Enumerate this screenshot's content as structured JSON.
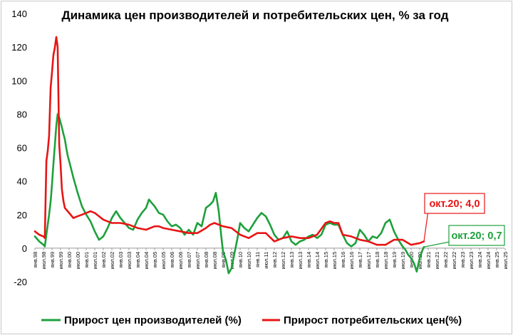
{
  "chart_data": {
    "type": "line",
    "title": "Динамика цен производителей и потребительских цен, % за год",
    "xlabel": "",
    "ylabel": "",
    "ylim": [
      -20,
      140
    ],
    "y_ticks": [
      -20,
      0,
      20,
      40,
      60,
      80,
      100,
      120,
      140
    ],
    "grid": false,
    "legend_position": "bottom",
    "x_tick_labels": [
      "янв.98",
      "июл.98",
      "янв.99",
      "июл.99",
      "янв.00",
      "июл.00",
      "янв.01",
      "июл.01",
      "янв.02",
      "июл.02",
      "янв.03",
      "июл.03",
      "янв.04",
      "июл.04",
      "янв.05",
      "июл.05",
      "янв.06",
      "июл.06",
      "янв.07",
      "июл.07",
      "янв.08",
      "июл.08",
      "янв.09",
      "июл.09",
      "янв.10",
      "июл.10",
      "янв.11",
      "июл.11",
      "янв.12",
      "июл.12",
      "янв.13",
      "июл.13",
      "янв.14",
      "июл.14",
      "янв.15",
      "июл.15",
      "янв.16",
      "июл.16",
      "янв.17",
      "июл.17",
      "янв.18",
      "июл.18",
      "янв.19",
      "июл.19",
      "янв.20",
      "июл.20",
      "янв.21",
      "июл.21",
      "янв.22",
      "июл.22",
      "янв.23",
      "июл.23",
      "янв.24",
      "июл.24",
      "янв.25",
      "июл.25"
    ],
    "series": [
      {
        "name": "Прирост цен производителей (%)",
        "color": "#1ea03c",
        "points": [
          [
            1998.0,
            7
          ],
          [
            1998.25,
            4
          ],
          [
            1998.5,
            2
          ],
          [
            1998.58,
            1
          ],
          [
            1998.67,
            8
          ],
          [
            1998.75,
            14
          ],
          [
            1998.83,
            20
          ],
          [
            1998.92,
            28
          ],
          [
            1999.0,
            38
          ],
          [
            1999.08,
            50
          ],
          [
            1999.17,
            62
          ],
          [
            1999.25,
            73
          ],
          [
            1999.33,
            80
          ],
          [
            1999.42,
            78
          ],
          [
            1999.5,
            75
          ],
          [
            1999.58,
            72
          ],
          [
            1999.67,
            68
          ],
          [
            1999.75,
            65
          ],
          [
            1999.83,
            60
          ],
          [
            1999.92,
            55
          ],
          [
            2000.0,
            52
          ],
          [
            2000.25,
            42
          ],
          [
            2000.5,
            33
          ],
          [
            2000.75,
            25
          ],
          [
            2001.0,
            20
          ],
          [
            2001.25,
            16
          ],
          [
            2001.5,
            10
          ],
          [
            2001.75,
            5
          ],
          [
            2002.0,
            7
          ],
          [
            2002.25,
            12
          ],
          [
            2002.5,
            18
          ],
          [
            2002.75,
            22
          ],
          [
            2003.0,
            18
          ],
          [
            2003.25,
            15
          ],
          [
            2003.5,
            12
          ],
          [
            2003.75,
            11
          ],
          [
            2004.0,
            17
          ],
          [
            2004.25,
            21
          ],
          [
            2004.5,
            24
          ],
          [
            2004.67,
            29
          ],
          [
            2004.83,
            27
          ],
          [
            2005.0,
            25
          ],
          [
            2005.25,
            21
          ],
          [
            2005.5,
            20
          ],
          [
            2005.75,
            16
          ],
          [
            2006.0,
            13
          ],
          [
            2006.25,
            14
          ],
          [
            2006.5,
            12
          ],
          [
            2006.75,
            8
          ],
          [
            2007.0,
            11
          ],
          [
            2007.25,
            8
          ],
          [
            2007.5,
            15
          ],
          [
            2007.75,
            13
          ],
          [
            2008.0,
            24
          ],
          [
            2008.25,
            26
          ],
          [
            2008.42,
            28
          ],
          [
            2008.58,
            33
          ],
          [
            2008.75,
            22
          ],
          [
            2008.92,
            5
          ],
          [
            2009.0,
            -2
          ],
          [
            2009.17,
            -7
          ],
          [
            2009.33,
            -15
          ],
          [
            2009.5,
            -12
          ],
          [
            2009.67,
            -3
          ],
          [
            2009.83,
            5
          ],
          [
            2010.0,
            15
          ],
          [
            2010.25,
            12
          ],
          [
            2010.5,
            10
          ],
          [
            2010.75,
            14
          ],
          [
            2011.0,
            18
          ],
          [
            2011.25,
            21
          ],
          [
            2011.5,
            19
          ],
          [
            2011.75,
            14
          ],
          [
            2012.0,
            8
          ],
          [
            2012.25,
            5
          ],
          [
            2012.5,
            6
          ],
          [
            2012.75,
            10
          ],
          [
            2013.0,
            4
          ],
          [
            2013.25,
            2
          ],
          [
            2013.5,
            4
          ],
          [
            2013.75,
            5
          ],
          [
            2014.0,
            7
          ],
          [
            2014.25,
            8
          ],
          [
            2014.5,
            6
          ],
          [
            2014.75,
            8
          ],
          [
            2015.0,
            14
          ],
          [
            2015.25,
            15
          ],
          [
            2015.5,
            14
          ],
          [
            2015.75,
            14
          ],
          [
            2016.0,
            8
          ],
          [
            2016.25,
            3
          ],
          [
            2016.5,
            1
          ],
          [
            2016.75,
            3
          ],
          [
            2017.0,
            11
          ],
          [
            2017.25,
            8
          ],
          [
            2017.5,
            4
          ],
          [
            2017.75,
            7
          ],
          [
            2018.0,
            6
          ],
          [
            2018.25,
            9
          ],
          [
            2018.5,
            15
          ],
          [
            2018.75,
            17
          ],
          [
            2019.0,
            10
          ],
          [
            2019.25,
            5
          ],
          [
            2019.5,
            1
          ],
          [
            2019.67,
            -1
          ],
          [
            2019.83,
            -4
          ],
          [
            2020.0,
            -6
          ],
          [
            2020.17,
            -9
          ],
          [
            2020.33,
            -14
          ],
          [
            2020.5,
            -6
          ],
          [
            2020.67,
            -1
          ],
          [
            2020.75,
            0.7
          ]
        ]
      },
      {
        "name": "Прирост потребительских цен(%)",
        "color": "#e81414",
        "points": [
          [
            1998.0,
            10
          ],
          [
            1998.25,
            8
          ],
          [
            1998.5,
            7
          ],
          [
            1998.58,
            6
          ],
          [
            1998.67,
            52
          ],
          [
            1998.75,
            58
          ],
          [
            1998.83,
            67
          ],
          [
            1998.92,
            96
          ],
          [
            1999.0,
            105
          ],
          [
            1999.08,
            115
          ],
          [
            1999.17,
            120
          ],
          [
            1999.25,
            126
          ],
          [
            1999.33,
            120
          ],
          [
            1999.42,
            62
          ],
          [
            1999.5,
            50
          ],
          [
            1999.58,
            35
          ],
          [
            1999.67,
            28
          ],
          [
            1999.75,
            24
          ],
          [
            2000.0,
            21
          ],
          [
            2000.25,
            18
          ],
          [
            2000.5,
            19
          ],
          [
            2000.75,
            20
          ],
          [
            2001.0,
            21
          ],
          [
            2001.25,
            22
          ],
          [
            2001.5,
            21
          ],
          [
            2001.75,
            19
          ],
          [
            2002.0,
            17
          ],
          [
            2002.25,
            16
          ],
          [
            2002.5,
            15
          ],
          [
            2003.0,
            15
          ],
          [
            2003.5,
            14
          ],
          [
            2004.0,
            12
          ],
          [
            2004.5,
            11
          ],
          [
            2005.0,
            13
          ],
          [
            2005.25,
            13
          ],
          [
            2005.5,
            12
          ],
          [
            2006.0,
            11
          ],
          [
            2006.5,
            10
          ],
          [
            2007.0,
            9
          ],
          [
            2007.5,
            9
          ],
          [
            2008.0,
            12
          ],
          [
            2008.25,
            14
          ],
          [
            2008.5,
            15
          ],
          [
            2009.0,
            13
          ],
          [
            2009.5,
            12
          ],
          [
            2010.0,
            8
          ],
          [
            2010.5,
            6
          ],
          [
            2011.0,
            9
          ],
          [
            2011.5,
            9
          ],
          [
            2012.0,
            4
          ],
          [
            2012.5,
            6
          ],
          [
            2013.0,
            7
          ],
          [
            2013.5,
            6
          ],
          [
            2014.0,
            6
          ],
          [
            2014.5,
            8
          ],
          [
            2015.0,
            15
          ],
          [
            2015.25,
            16
          ],
          [
            2015.5,
            15
          ],
          [
            2015.75,
            15
          ],
          [
            2016.0,
            8
          ],
          [
            2016.5,
            7
          ],
          [
            2017.0,
            5
          ],
          [
            2017.5,
            4
          ],
          [
            2018.0,
            2
          ],
          [
            2018.5,
            2
          ],
          [
            2019.0,
            5
          ],
          [
            2019.5,
            5
          ],
          [
            2020.0,
            2
          ],
          [
            2020.5,
            3
          ],
          [
            2020.75,
            4.0
          ]
        ]
      }
    ],
    "annotations": [
      {
        "text": "окт.20; 4,0",
        "color": "#e81414",
        "x": 2020.75,
        "y": 4.0
      },
      {
        "text": "окт.20; 0,7",
        "color": "#1ea03c",
        "x": 2020.75,
        "y": 0.7
      }
    ]
  }
}
